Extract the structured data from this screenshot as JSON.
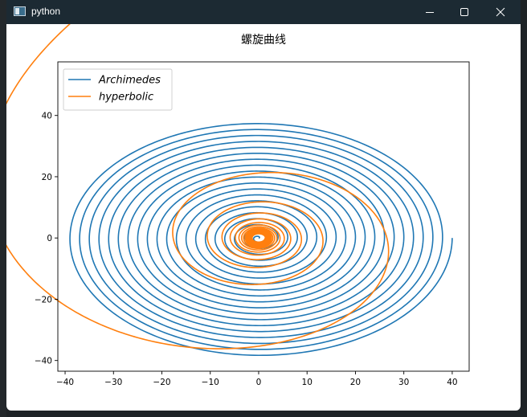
{
  "window": {
    "title": "python",
    "icon": "python-figure-icon",
    "controls": [
      "minimize-icon",
      "maximize-icon",
      "close-icon"
    ]
  },
  "chart_data": {
    "type": "line",
    "title": "螺旋曲线",
    "xlabel": "",
    "ylabel": "",
    "xlim": [
      -41.5,
      43.5
    ],
    "ylim": [
      -43.5,
      57.5
    ],
    "xticks": [
      -40,
      -30,
      -20,
      -10,
      0,
      10,
      20,
      30,
      40
    ],
    "yticks": [
      -40,
      -20,
      0,
      20,
      40
    ],
    "grid": false,
    "legend_placement": "top-left",
    "series": [
      {
        "name": "Archimedes",
        "color": "#1f77b4",
        "formula": "r = theta / pi, x = r cos(theta), y = 0.97 r sin(theta), theta in [0, 40 pi]"
      },
      {
        "name": "hyperbolic",
        "color": "#ff7f0e",
        "formula": "r = 53 pi / theta, x = r cos(theta), y = r sin(theta), theta in [pi/3, 40 pi]"
      }
    ]
  }
}
